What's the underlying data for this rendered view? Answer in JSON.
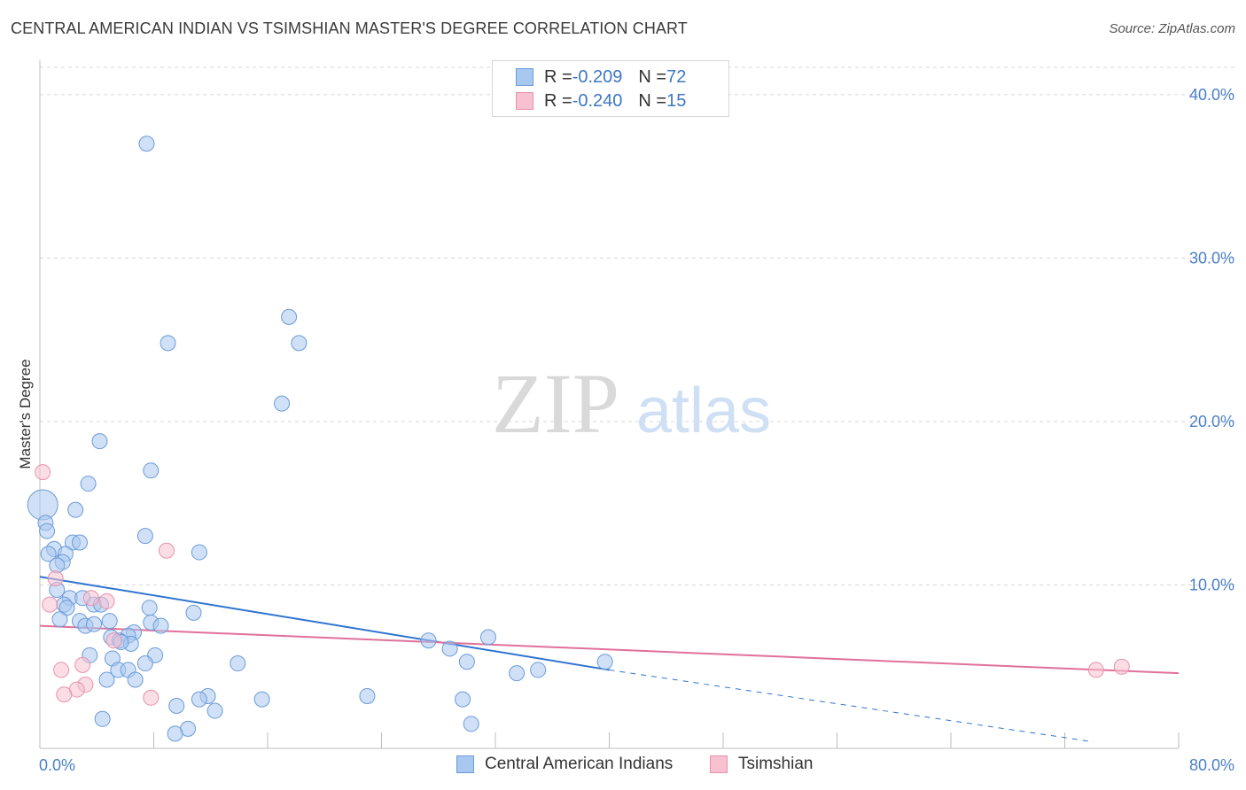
{
  "header": {
    "title": "CENTRAL AMERICAN INDIAN VS TSIMSHIAN MASTER'S DEGREE CORRELATION CHART",
    "source": "Source: ZipAtlas.com"
  },
  "watermark": {
    "zip": "ZIP",
    "atlas": "atlas"
  },
  "legend": {
    "rows": [
      {
        "r_label": "R = ",
        "r_value": "-0.209",
        "n_label": "N = ",
        "n_value": "72"
      },
      {
        "r_label": "R = ",
        "r_value": "-0.240",
        "n_label": "N = ",
        "n_value": "15"
      }
    ]
  },
  "colors": {
    "blue_fill": "#a9c8f0",
    "blue_stroke": "#6b9bd8",
    "blue_line": "#2f74d0",
    "pink_fill": "#f7c1d2",
    "pink_stroke": "#e892ad",
    "pink_line": "#e0709a",
    "grid": "#d8d8d8",
    "tick_text": "#4a7fc9"
  },
  "chart_data": {
    "type": "scatter",
    "title": "CENTRAL AMERICAN INDIAN VS TSIMSHIAN MASTER'S DEGREE CORRELATION CHART",
    "xlabel": "",
    "ylabel": "Master's Degree",
    "xlim": [
      0,
      80
    ],
    "ylim": [
      0,
      42
    ],
    "x_tick_labels": [
      "0.0%",
      "80.0%"
    ],
    "y_ticks": [
      10,
      20,
      30,
      40
    ],
    "y_tick_labels": [
      "10.0%",
      "20.0%",
      "30.0%",
      "40.0%"
    ],
    "grid": true,
    "legend_position": "top-center",
    "series": [
      {
        "name": "Central American Indians",
        "color": "#a9c8f0",
        "r": -0.209,
        "n": 72,
        "trend": {
          "x": [
            0,
            40
          ],
          "y": [
            10.5,
            4.8
          ],
          "dashed_to": [
            74,
            0.4
          ]
        },
        "points": [
          {
            "x": 7.5,
            "y": 37.0
          },
          {
            "x": 17.5,
            "y": 26.4
          },
          {
            "x": 9.0,
            "y": 24.8
          },
          {
            "x": 18.2,
            "y": 24.8
          },
          {
            "x": 17.0,
            "y": 21.1
          },
          {
            "x": 4.2,
            "y": 18.8
          },
          {
            "x": 7.8,
            "y": 17.0
          },
          {
            "x": 3.4,
            "y": 16.2
          },
          {
            "x": 0.2,
            "y": 14.9,
            "s": 2
          },
          {
            "x": 2.5,
            "y": 14.6
          },
          {
            "x": 0.4,
            "y": 13.8
          },
          {
            "x": 0.5,
            "y": 13.3
          },
          {
            "x": 7.4,
            "y": 13.0
          },
          {
            "x": 2.3,
            "y": 12.6
          },
          {
            "x": 2.8,
            "y": 12.6
          },
          {
            "x": 1.0,
            "y": 12.2
          },
          {
            "x": 11.2,
            "y": 12.0
          },
          {
            "x": 0.6,
            "y": 11.9
          },
          {
            "x": 1.8,
            "y": 11.9
          },
          {
            "x": 1.6,
            "y": 11.4
          },
          {
            "x": 1.2,
            "y": 11.2
          },
          {
            "x": 1.2,
            "y": 9.7
          },
          {
            "x": 2.1,
            "y": 9.2
          },
          {
            "x": 3.0,
            "y": 9.2
          },
          {
            "x": 1.7,
            "y": 8.8
          },
          {
            "x": 3.8,
            "y": 8.8
          },
          {
            "x": 4.3,
            "y": 8.8
          },
          {
            "x": 1.9,
            "y": 8.6
          },
          {
            "x": 7.7,
            "y": 8.6
          },
          {
            "x": 10.8,
            "y": 8.3
          },
          {
            "x": 1.4,
            "y": 7.9
          },
          {
            "x": 2.8,
            "y": 7.8
          },
          {
            "x": 4.9,
            "y": 7.8
          },
          {
            "x": 7.8,
            "y": 7.7
          },
          {
            "x": 3.2,
            "y": 7.5
          },
          {
            "x": 3.8,
            "y": 7.6
          },
          {
            "x": 8.5,
            "y": 7.5
          },
          {
            "x": 6.6,
            "y": 7.1
          },
          {
            "x": 6.2,
            "y": 6.9
          },
          {
            "x": 5.0,
            "y": 6.8
          },
          {
            "x": 5.6,
            "y": 6.6
          },
          {
            "x": 6.4,
            "y": 6.4
          },
          {
            "x": 5.7,
            "y": 6.5
          },
          {
            "x": 27.3,
            "y": 6.6
          },
          {
            "x": 31.5,
            "y": 6.8
          },
          {
            "x": 28.8,
            "y": 6.1
          },
          {
            "x": 3.5,
            "y": 5.7
          },
          {
            "x": 8.1,
            "y": 5.7
          },
          {
            "x": 5.1,
            "y": 5.5
          },
          {
            "x": 7.4,
            "y": 5.2
          },
          {
            "x": 13.9,
            "y": 5.2
          },
          {
            "x": 30.0,
            "y": 5.3
          },
          {
            "x": 39.7,
            "y": 5.3
          },
          {
            "x": 5.5,
            "y": 4.8
          },
          {
            "x": 6.2,
            "y": 4.8
          },
          {
            "x": 35.0,
            "y": 4.8
          },
          {
            "x": 33.5,
            "y": 4.6
          },
          {
            "x": 4.7,
            "y": 4.2
          },
          {
            "x": 6.7,
            "y": 4.2
          },
          {
            "x": 11.8,
            "y": 3.2
          },
          {
            "x": 23.0,
            "y": 3.2
          },
          {
            "x": 11.2,
            "y": 3.0
          },
          {
            "x": 15.6,
            "y": 3.0
          },
          {
            "x": 29.7,
            "y": 3.0
          },
          {
            "x": 9.6,
            "y": 2.6
          },
          {
            "x": 12.3,
            "y": 2.3
          },
          {
            "x": 4.4,
            "y": 1.8
          },
          {
            "x": 30.3,
            "y": 1.5
          },
          {
            "x": 10.4,
            "y": 1.2
          },
          {
            "x": 9.5,
            "y": 0.9
          }
        ]
      },
      {
        "name": "Tsimshian",
        "color": "#f7c1d2",
        "r": -0.24,
        "n": 15,
        "trend": {
          "x": [
            0,
            80
          ],
          "y": [
            7.5,
            4.6
          ]
        },
        "points": [
          {
            "x": 0.2,
            "y": 16.9
          },
          {
            "x": 8.9,
            "y": 12.1
          },
          {
            "x": 1.1,
            "y": 10.4
          },
          {
            "x": 0.7,
            "y": 8.8
          },
          {
            "x": 3.6,
            "y": 9.2
          },
          {
            "x": 4.7,
            "y": 9.0
          },
          {
            "x": 5.2,
            "y": 6.6
          },
          {
            "x": 1.5,
            "y": 4.8
          },
          {
            "x": 3.0,
            "y": 5.1
          },
          {
            "x": 3.2,
            "y": 3.9
          },
          {
            "x": 2.6,
            "y": 3.6
          },
          {
            "x": 1.7,
            "y": 3.3
          },
          {
            "x": 7.8,
            "y": 3.1
          },
          {
            "x": 74.2,
            "y": 4.8
          },
          {
            "x": 76.0,
            "y": 5.0
          }
        ]
      }
    ]
  }
}
